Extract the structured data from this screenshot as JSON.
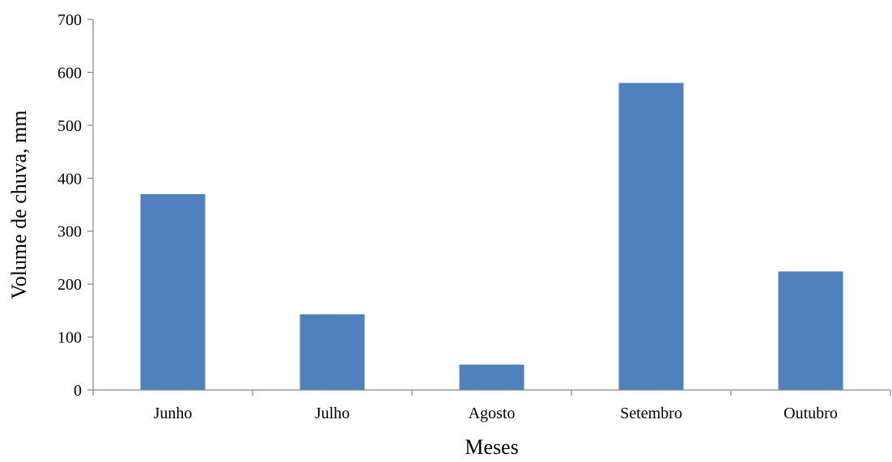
{
  "chart_data": {
    "type": "bar",
    "categories": [
      "Junho",
      "Julho",
      "Agosto",
      "Setembro",
      "Outubro"
    ],
    "values": [
      370,
      143,
      48,
      580,
      224
    ],
    "title": "",
    "xlabel": "Meses",
    "ylabel": "Volume de chuva, mm",
    "ylim": [
      0,
      700
    ],
    "yticks": [
      0,
      100,
      200,
      300,
      400,
      500,
      600,
      700
    ],
    "grid": false,
    "legend": "none",
    "bar_color": "#4f81bd"
  }
}
